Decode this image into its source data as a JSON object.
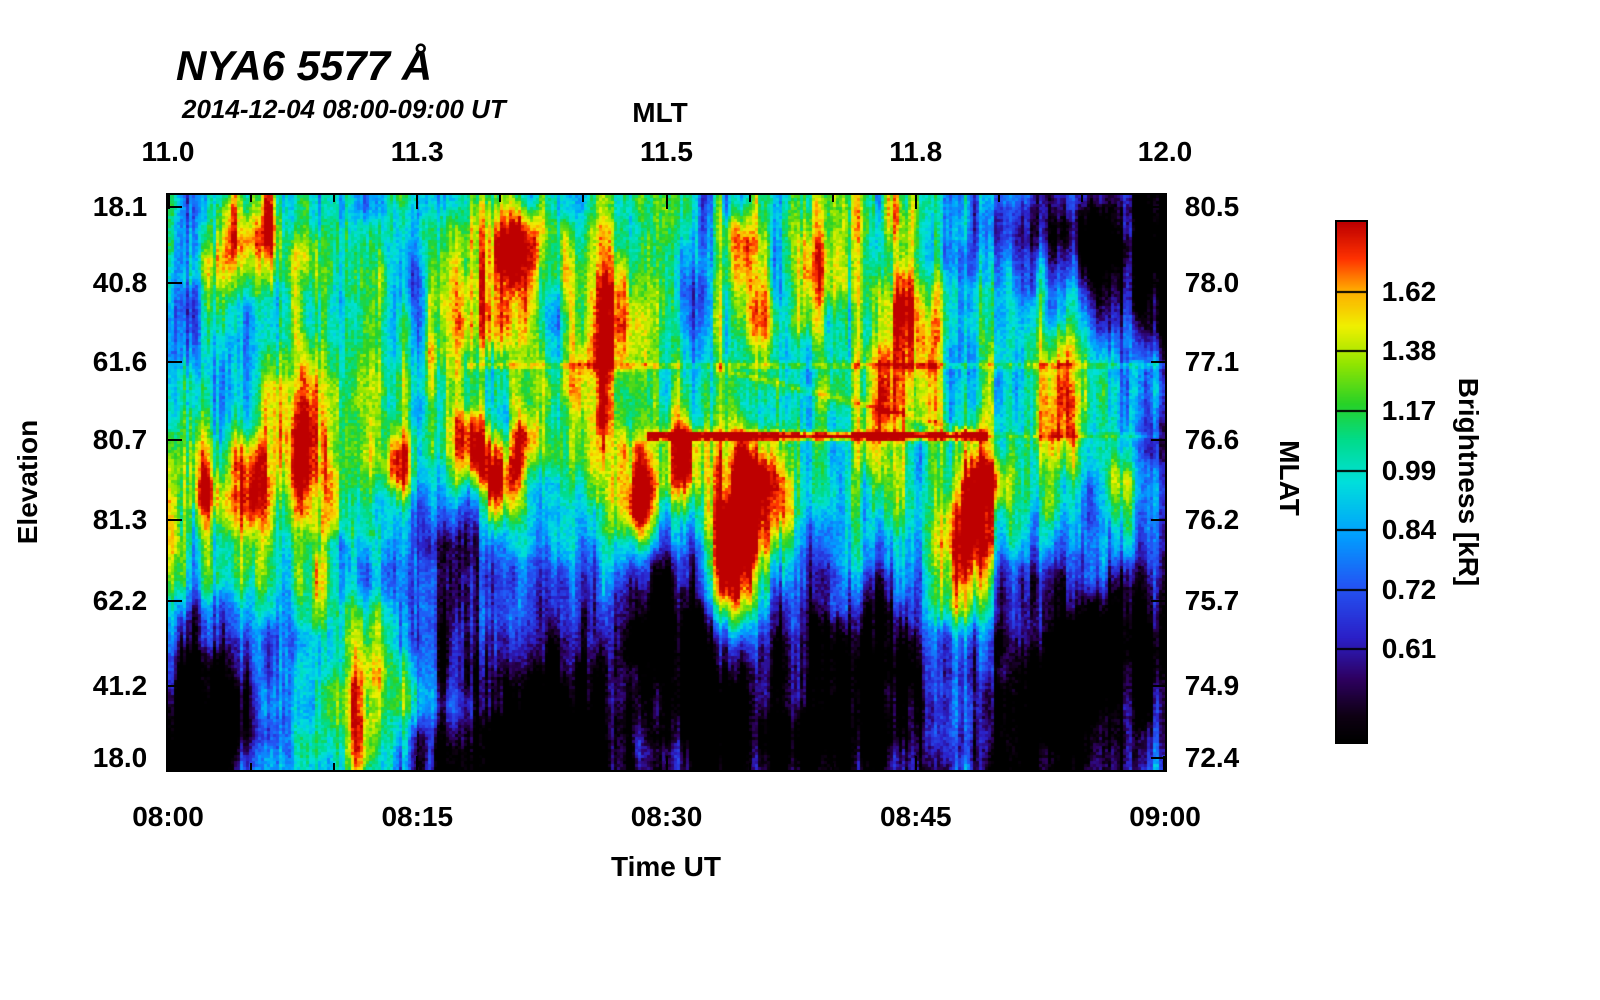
{
  "header": {
    "title": "NYA6 5577 Å",
    "subtitle": "2014-12-04 08:00-09:00 UT"
  },
  "chart_data": {
    "type": "heatmap",
    "title": "NYA6 5577 Å",
    "subtitle": "2014-12-04 08:00-09:00 UT",
    "description": "Meridian-scanning keogram of 557.7 nm (green line) auroral brightness versus elevation and time. Streaky blue/cyan background with green-yellow auroral structures, red intensifications near 08:20, 08:33-08:35 and 08:47-08:49 UT, a bright horizontal scan-artifact line near elevation 80.7, and dark low-brightness patches at low elevations and after 08:50 UT.",
    "x_axis": {
      "top_label": "MLT",
      "top_ticks": [
        {
          "label": "11.0",
          "f": 0.0
        },
        {
          "label": "11.3",
          "f": 0.25
        },
        {
          "label": "11.5",
          "f": 0.5
        },
        {
          "label": "11.8",
          "f": 0.75
        },
        {
          "label": "12.0",
          "f": 1.0
        }
      ],
      "bottom_label": "Time UT",
      "bottom_ticks": [
        {
          "label": "08:00",
          "f": 0.0
        },
        {
          "label": "08:15",
          "f": 0.25
        },
        {
          "label": "08:30",
          "f": 0.5
        },
        {
          "label": "08:45",
          "f": 0.75
        },
        {
          "label": "09:00",
          "f": 1.0
        }
      ]
    },
    "y_axis": {
      "left_label": "Elevation",
      "left_ticks": [
        {
          "label": "18.1",
          "f": 0.021
        },
        {
          "label": "40.8",
          "f": 0.153
        },
        {
          "label": "61.6",
          "f": 0.29
        },
        {
          "label": "80.7",
          "f": 0.426
        },
        {
          "label": "81.3",
          "f": 0.565
        },
        {
          "label": "62.2",
          "f": 0.706
        },
        {
          "label": "41.2",
          "f": 0.854
        },
        {
          "label": "18.0",
          "f": 0.979
        }
      ],
      "right_label": "MLAT",
      "right_ticks": [
        {
          "label": "80.5",
          "f": 0.021
        },
        {
          "label": "78.0",
          "f": 0.153
        },
        {
          "label": "77.1",
          "f": 0.29
        },
        {
          "label": "76.6",
          "f": 0.426
        },
        {
          "label": "76.2",
          "f": 0.565
        },
        {
          "label": "75.7",
          "f": 0.706
        },
        {
          "label": "74.9",
          "f": 0.854
        },
        {
          "label": "72.4",
          "f": 0.979
        }
      ]
    },
    "colorbar": {
      "label": "Brightness [kR]",
      "ticks": [
        {
          "label": "1.62",
          "f": 0.135
        },
        {
          "label": "1.38",
          "f": 0.249
        },
        {
          "label": "1.17",
          "f": 0.364
        },
        {
          "label": "0.99",
          "f": 0.478
        },
        {
          "label": "0.84",
          "f": 0.592
        },
        {
          "label": "0.72",
          "f": 0.707
        },
        {
          "label": "0.61",
          "f": 0.821
        }
      ],
      "colormap_stops": [
        [
          0.0,
          "#000000"
        ],
        [
          0.05,
          "#0f0014"
        ],
        [
          0.12,
          "#2e0060"
        ],
        [
          0.2,
          "#2b20c8"
        ],
        [
          0.3,
          "#2356f5"
        ],
        [
          0.4,
          "#00a2ff"
        ],
        [
          0.5,
          "#00e0dc"
        ],
        [
          0.58,
          "#00dc8c"
        ],
        [
          0.65,
          "#28d228"
        ],
        [
          0.73,
          "#96e600"
        ],
        [
          0.8,
          "#f0f000"
        ],
        [
          0.87,
          "#ffaa00"
        ],
        [
          0.93,
          "#ff3200"
        ],
        [
          1.0,
          "#be0000"
        ]
      ]
    },
    "render_model": {
      "seed": 2014,
      "grid": [
        333,
        192
      ],
      "hotspots": [
        {
          "x": 0.085,
          "y": 0.5,
          "rx": 0.018,
          "ry": 0.05,
          "a": 0.4
        },
        {
          "x": 0.04,
          "y": 0.52,
          "rx": 0.012,
          "ry": 0.04,
          "a": 0.35
        },
        {
          "x": 0.135,
          "y": 0.35,
          "rx": 0.02,
          "ry": 0.12,
          "a": 0.3
        },
        {
          "x": 0.19,
          "y": 0.9,
          "rx": 0.025,
          "ry": 0.12,
          "a": 0.5
        },
        {
          "x": 0.23,
          "y": 0.465,
          "rx": 0.01,
          "ry": 0.04,
          "a": 0.45
        },
        {
          "x": 0.305,
          "y": 0.44,
          "rx": 0.013,
          "ry": 0.05,
          "a": 0.6
        },
        {
          "x": 0.335,
          "y": 0.5,
          "rx": 0.012,
          "ry": 0.05,
          "a": 0.55
        },
        {
          "x": 0.36,
          "y": 0.43,
          "rx": 0.01,
          "ry": 0.04,
          "a": 0.45
        },
        {
          "x": 0.33,
          "y": 0.15,
          "rx": 0.025,
          "ry": 0.12,
          "a": 0.35
        },
        {
          "x": 0.35,
          "y": 0.07,
          "rx": 0.02,
          "ry": 0.06,
          "a": 0.4
        },
        {
          "x": 0.44,
          "y": 0.3,
          "rx": 0.02,
          "ry": 0.15,
          "a": 0.3
        },
        {
          "x": 0.475,
          "y": 0.53,
          "rx": 0.014,
          "ry": 0.06,
          "a": 0.6
        },
        {
          "x": 0.52,
          "y": 0.47,
          "rx": 0.01,
          "ry": 0.05,
          "a": 0.4
        },
        {
          "x": 0.565,
          "y": 0.63,
          "rx": 0.018,
          "ry": 0.11,
          "a": 0.8
        },
        {
          "x": 0.585,
          "y": 0.5,
          "rx": 0.012,
          "ry": 0.06,
          "a": 0.55
        },
        {
          "x": 0.575,
          "y": 0.1,
          "rx": 0.012,
          "ry": 0.05,
          "a": 0.5
        },
        {
          "x": 0.59,
          "y": 0.24,
          "rx": 0.02,
          "ry": 0.1,
          "a": 0.35
        },
        {
          "x": 0.615,
          "y": 0.55,
          "rx": 0.012,
          "ry": 0.08,
          "a": 0.5
        },
        {
          "x": 0.66,
          "y": 0.12,
          "rx": 0.02,
          "ry": 0.1,
          "a": 0.35
        },
        {
          "x": 0.71,
          "y": 0.42,
          "rx": 0.015,
          "ry": 0.08,
          "a": 0.35
        },
        {
          "x": 0.74,
          "y": 0.2,
          "rx": 0.025,
          "ry": 0.12,
          "a": 0.3
        },
        {
          "x": 0.805,
          "y": 0.62,
          "rx": 0.018,
          "ry": 0.1,
          "a": 0.8
        },
        {
          "x": 0.825,
          "y": 0.5,
          "rx": 0.012,
          "ry": 0.05,
          "a": 0.5
        },
        {
          "x": 0.9,
          "y": 0.38,
          "rx": 0.02,
          "ry": 0.1,
          "a": 0.3
        },
        {
          "x": 0.96,
          "y": 0.52,
          "rx": 0.02,
          "ry": 0.08,
          "a": 0.35
        },
        {
          "x": 0.08,
          "y": 0.08,
          "rx": 0.03,
          "ry": 0.06,
          "a": 0.35
        }
      ],
      "darkspots": [
        {
          "x": 0.03,
          "y": 0.95,
          "rx": 0.04,
          "ry": 0.15,
          "a": 0.55
        },
        {
          "x": 0.27,
          "y": 0.62,
          "rx": 0.035,
          "ry": 0.12,
          "a": 0.35
        },
        {
          "x": 0.38,
          "y": 0.92,
          "rx": 0.07,
          "ry": 0.18,
          "a": 0.6
        },
        {
          "x": 0.5,
          "y": 0.72,
          "rx": 0.03,
          "ry": 0.12,
          "a": 0.45
        },
        {
          "x": 0.56,
          "y": 0.85,
          "rx": 0.035,
          "ry": 0.12,
          "a": 0.5
        },
        {
          "x": 0.64,
          "y": 0.65,
          "rx": 0.025,
          "ry": 0.1,
          "a": 0.4
        },
        {
          "x": 0.66,
          "y": 0.92,
          "rx": 0.05,
          "ry": 0.12,
          "a": 0.5
        },
        {
          "x": 0.72,
          "y": 0.77,
          "rx": 0.03,
          "ry": 0.13,
          "a": 0.35
        },
        {
          "x": 0.92,
          "y": 0.78,
          "rx": 0.08,
          "ry": 0.16,
          "a": 0.65
        },
        {
          "x": 0.92,
          "y": 0.07,
          "rx": 0.07,
          "ry": 0.09,
          "a": 0.5
        },
        {
          "x": 0.995,
          "y": 0.3,
          "rx": 0.02,
          "ry": 0.3,
          "a": 0.3
        }
      ],
      "lines": [
        {
          "x0": 0.3,
          "x1": 1.0,
          "y0": 0.295,
          "y1": 0.295,
          "w": 0.006,
          "a": 0.14
        },
        {
          "x0": 0.48,
          "x1": 0.825,
          "y0": 0.418,
          "y1": 0.418,
          "w": 0.007,
          "a": 0.55
        },
        {
          "x0": 0.55,
          "x1": 0.825,
          "y0": 0.3,
          "y1": 0.418,
          "w": 0.006,
          "a": 0.12
        },
        {
          "x0": 0.825,
          "x1": 1.0,
          "y0": 0.418,
          "y1": 0.418,
          "w": 0.005,
          "a": 0.12
        }
      ]
    }
  }
}
